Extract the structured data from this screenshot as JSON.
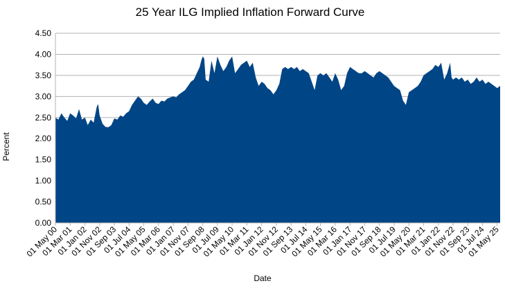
{
  "chart_data": {
    "type": "area",
    "title": "25 Year ILG Implied Inflation Forward Curve",
    "xlabel": "Date",
    "ylabel": "Percent",
    "ylim": [
      0,
      4.5
    ],
    "yticks": [
      "0.00",
      "0.50",
      "1.00",
      "1.50",
      "2.00",
      "2.50",
      "3.00",
      "3.50",
      "4.00",
      "4.50"
    ],
    "y_tick_values": [
      0,
      0.5,
      1.0,
      1.5,
      2.0,
      2.5,
      3.0,
      3.5,
      4.0,
      4.5
    ],
    "xlim": [
      "2000-05-01",
      "2025-07-01"
    ],
    "x_tick_labels": [
      {
        "label": "01 May 00",
        "date": "2000-05-01"
      },
      {
        "label": "01 Mar 01",
        "date": "2001-03-01"
      },
      {
        "label": "01 Jan 02",
        "date": "2002-01-01"
      },
      {
        "label": "01 Nov 02",
        "date": "2002-11-01"
      },
      {
        "label": "01 Sep 03",
        "date": "2003-09-01"
      },
      {
        "label": "01 Jul 04",
        "date": "2004-07-01"
      },
      {
        "label": "01 May 05",
        "date": "2005-05-01"
      },
      {
        "label": "01 Mar 06",
        "date": "2006-03-01"
      },
      {
        "label": "01 Jan 07",
        "date": "2007-01-01"
      },
      {
        "label": "01 Nov 07",
        "date": "2007-11-01"
      },
      {
        "label": "01 Sep 08",
        "date": "2008-09-01"
      },
      {
        "label": "01 Jul 09",
        "date": "2009-07-01"
      },
      {
        "label": "01 May 10",
        "date": "2010-05-01"
      },
      {
        "label": "01 Mar 11",
        "date": "2011-03-01"
      },
      {
        "label": "01 Jan 12",
        "date": "2012-01-01"
      },
      {
        "label": "01 Nov 12",
        "date": "2012-11-01"
      },
      {
        "label": "01 Sep 13",
        "date": "2013-09-01"
      },
      {
        "label": "01 Jul 14",
        "date": "2014-07-01"
      },
      {
        "label": "01 May 15",
        "date": "2015-05-01"
      },
      {
        "label": "01 Mar 16",
        "date": "2016-03-01"
      },
      {
        "label": "01 Jan 17",
        "date": "2017-01-01"
      },
      {
        "label": "01 Nov 17",
        "date": "2017-11-01"
      },
      {
        "label": "01 Sep 18",
        "date": "2018-09-01"
      },
      {
        "label": "01 Jul 19",
        "date": "2019-07-01"
      },
      {
        "label": "01 May 20",
        "date": "2020-05-01"
      },
      {
        "label": "01 Mar 21",
        "date": "2021-03-01"
      },
      {
        "label": "01 Jan 22",
        "date": "2022-01-01"
      },
      {
        "label": "01 Nov 22",
        "date": "2022-11-01"
      },
      {
        "label": "01 Sep 23",
        "date": "2023-09-01"
      },
      {
        "label": "01 Jul 24",
        "date": "2024-07-01"
      },
      {
        "label": "01 May 25",
        "date": "2025-05-01"
      }
    ],
    "grid": true,
    "legend": "none",
    "series": [
      {
        "color": "#004586",
        "points": [
          [
            "2000-05-01",
            2.5
          ],
          [
            "2000-07-01",
            2.45
          ],
          [
            "2000-09-01",
            2.6
          ],
          [
            "2000-11-01",
            2.5
          ],
          [
            "2001-01-01",
            2.42
          ],
          [
            "2001-03-01",
            2.6
          ],
          [
            "2001-05-01",
            2.55
          ],
          [
            "2001-07-01",
            2.48
          ],
          [
            "2001-09-01",
            2.7
          ],
          [
            "2001-11-01",
            2.45
          ],
          [
            "2002-01-01",
            2.5
          ],
          [
            "2002-03-01",
            2.32
          ],
          [
            "2002-05-01",
            2.45
          ],
          [
            "2002-07-01",
            2.38
          ],
          [
            "2002-09-01",
            2.75
          ],
          [
            "2002-10-01",
            2.82
          ],
          [
            "2002-11-01",
            2.55
          ],
          [
            "2003-01-01",
            2.35
          ],
          [
            "2003-03-01",
            2.28
          ],
          [
            "2003-05-01",
            2.27
          ],
          [
            "2003-07-01",
            2.32
          ],
          [
            "2003-09-01",
            2.48
          ],
          [
            "2003-11-01",
            2.45
          ],
          [
            "2004-01-01",
            2.55
          ],
          [
            "2004-03-01",
            2.52
          ],
          [
            "2004-05-01",
            2.6
          ],
          [
            "2004-07-01",
            2.65
          ],
          [
            "2004-09-01",
            2.8
          ],
          [
            "2004-11-01",
            2.9
          ],
          [
            "2005-01-01",
            3.0
          ],
          [
            "2005-03-01",
            2.95
          ],
          [
            "2005-05-01",
            2.85
          ],
          [
            "2005-07-01",
            2.8
          ],
          [
            "2005-09-01",
            2.88
          ],
          [
            "2005-11-01",
            2.95
          ],
          [
            "2006-01-01",
            2.85
          ],
          [
            "2006-03-01",
            2.82
          ],
          [
            "2006-05-01",
            2.9
          ],
          [
            "2006-07-01",
            2.88
          ],
          [
            "2006-09-01",
            2.95
          ],
          [
            "2006-11-01",
            2.98
          ],
          [
            "2007-01-01",
            3.0
          ],
          [
            "2007-03-01",
            2.98
          ],
          [
            "2007-05-01",
            3.05
          ],
          [
            "2007-07-01",
            3.1
          ],
          [
            "2007-09-01",
            3.15
          ],
          [
            "2007-11-01",
            3.25
          ],
          [
            "2008-01-01",
            3.35
          ],
          [
            "2008-03-01",
            3.4
          ],
          [
            "2008-05-01",
            3.55
          ],
          [
            "2008-07-01",
            3.7
          ],
          [
            "2008-08-01",
            3.85
          ],
          [
            "2008-09-01",
            3.95
          ],
          [
            "2008-10-01",
            3.9
          ],
          [
            "2008-11-01",
            3.4
          ],
          [
            "2009-01-01",
            3.35
          ],
          [
            "2009-03-01",
            3.85
          ],
          [
            "2009-05-01",
            3.55
          ],
          [
            "2009-07-01",
            3.95
          ],
          [
            "2009-09-01",
            3.75
          ],
          [
            "2009-11-01",
            3.6
          ],
          [
            "2010-01-01",
            3.7
          ],
          [
            "2010-03-01",
            3.85
          ],
          [
            "2010-05-01",
            3.95
          ],
          [
            "2010-07-01",
            3.55
          ],
          [
            "2010-09-01",
            3.65
          ],
          [
            "2010-11-01",
            3.75
          ],
          [
            "2011-01-01",
            3.8
          ],
          [
            "2011-03-01",
            3.85
          ],
          [
            "2011-05-01",
            3.7
          ],
          [
            "2011-07-01",
            3.8
          ],
          [
            "2011-09-01",
            3.45
          ],
          [
            "2011-11-01",
            3.25
          ],
          [
            "2012-01-01",
            3.35
          ],
          [
            "2012-03-01",
            3.3
          ],
          [
            "2012-05-01",
            3.2
          ],
          [
            "2012-07-01",
            3.15
          ],
          [
            "2012-09-01",
            3.05
          ],
          [
            "2012-11-01",
            3.15
          ],
          [
            "2013-01-01",
            3.3
          ],
          [
            "2013-03-01",
            3.65
          ],
          [
            "2013-05-01",
            3.7
          ],
          [
            "2013-07-01",
            3.65
          ],
          [
            "2013-09-01",
            3.7
          ],
          [
            "2013-11-01",
            3.65
          ],
          [
            "2014-01-01",
            3.7
          ],
          [
            "2014-03-01",
            3.6
          ],
          [
            "2014-05-01",
            3.65
          ],
          [
            "2014-07-01",
            3.6
          ],
          [
            "2014-09-01",
            3.55
          ],
          [
            "2014-11-01",
            3.35
          ],
          [
            "2015-01-01",
            3.15
          ],
          [
            "2015-03-01",
            3.5
          ],
          [
            "2015-05-01",
            3.55
          ],
          [
            "2015-07-01",
            3.5
          ],
          [
            "2015-09-01",
            3.55
          ],
          [
            "2015-11-01",
            3.45
          ],
          [
            "2016-01-01",
            3.35
          ],
          [
            "2016-03-01",
            3.55
          ],
          [
            "2016-05-01",
            3.4
          ],
          [
            "2016-07-01",
            3.15
          ],
          [
            "2016-09-01",
            3.25
          ],
          [
            "2016-11-01",
            3.55
          ],
          [
            "2017-01-01",
            3.7
          ],
          [
            "2017-03-01",
            3.65
          ],
          [
            "2017-05-01",
            3.6
          ],
          [
            "2017-07-01",
            3.55
          ],
          [
            "2017-09-01",
            3.55
          ],
          [
            "2017-11-01",
            3.6
          ],
          [
            "2018-01-01",
            3.55
          ],
          [
            "2018-03-01",
            3.5
          ],
          [
            "2018-05-01",
            3.45
          ],
          [
            "2018-07-01",
            3.55
          ],
          [
            "2018-09-01",
            3.6
          ],
          [
            "2018-11-01",
            3.55
          ],
          [
            "2019-01-01",
            3.5
          ],
          [
            "2019-03-01",
            3.45
          ],
          [
            "2019-05-01",
            3.35
          ],
          [
            "2019-07-01",
            3.25
          ],
          [
            "2019-09-01",
            3.2
          ],
          [
            "2019-11-01",
            3.15
          ],
          [
            "2020-01-01",
            2.9
          ],
          [
            "2020-03-01",
            2.8
          ],
          [
            "2020-05-01",
            3.1
          ],
          [
            "2020-07-01",
            3.15
          ],
          [
            "2020-09-01",
            3.2
          ],
          [
            "2020-11-01",
            3.25
          ],
          [
            "2021-01-01",
            3.35
          ],
          [
            "2021-03-01",
            3.5
          ],
          [
            "2021-05-01",
            3.55
          ],
          [
            "2021-07-01",
            3.6
          ],
          [
            "2021-09-01",
            3.65
          ],
          [
            "2021-11-01",
            3.75
          ],
          [
            "2022-01-01",
            3.7
          ],
          [
            "2022-03-01",
            3.8
          ],
          [
            "2022-05-01",
            3.4
          ],
          [
            "2022-07-01",
            3.55
          ],
          [
            "2022-09-01",
            3.8
          ],
          [
            "2022-10-01",
            3.45
          ],
          [
            "2022-11-01",
            3.4
          ],
          [
            "2023-01-01",
            3.45
          ],
          [
            "2023-03-01",
            3.4
          ],
          [
            "2023-05-01",
            3.45
          ],
          [
            "2023-07-01",
            3.35
          ],
          [
            "2023-09-01",
            3.4
          ],
          [
            "2023-11-01",
            3.3
          ],
          [
            "2024-01-01",
            3.35
          ],
          [
            "2024-03-01",
            3.45
          ],
          [
            "2024-05-01",
            3.35
          ],
          [
            "2024-07-01",
            3.4
          ],
          [
            "2024-09-01",
            3.3
          ],
          [
            "2024-11-01",
            3.35
          ],
          [
            "2025-01-01",
            3.3
          ],
          [
            "2025-03-01",
            3.25
          ],
          [
            "2025-05-01",
            3.2
          ],
          [
            "2025-07-01",
            3.25
          ]
        ]
      }
    ]
  }
}
